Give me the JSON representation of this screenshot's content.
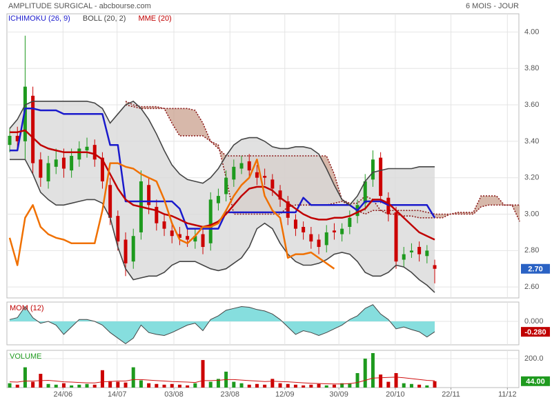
{
  "chart_data": [
    {
      "type": "candlestick",
      "title": "AMPLITUDE SURGICAL - abcbourse.com",
      "subtitle": "6 MOIS - JOUR",
      "xlim": [
        -0.36,
        65.89
      ],
      "xticks": [
        {
          "value": 6.9,
          "label": "24/06"
        },
        {
          "value": 13.9,
          "label": "14/07"
        },
        {
          "value": 21.25,
          "label": "03/08"
        },
        {
          "value": 28.5,
          "label": "23/08"
        },
        {
          "value": 35.6,
          "label": "12/09"
        },
        {
          "value": 42.6,
          "label": "30/09"
        },
        {
          "value": 49.9,
          "label": "20/10"
        },
        {
          "value": 57.1,
          "label": "22/11"
        },
        {
          "value": 64.4,
          "label": "11/12"
        }
      ],
      "ylim": [
        2.54,
        4.1
      ],
      "yticks": [
        {
          "value": 2.6,
          "label": "2.60"
        },
        {
          "value": 2.8,
          "label": "2.80"
        },
        {
          "value": 3.0,
          "label": "3.00"
        },
        {
          "value": 3.2,
          "label": "3.20"
        },
        {
          "value": 3.4,
          "label": "3.40"
        },
        {
          "value": 3.6,
          "label": "3.60"
        },
        {
          "value": 3.8,
          "label": "3.80"
        },
        {
          "value": 4.0,
          "label": "4.00"
        }
      ],
      "grid": true,
      "up_color": "#1e9a1e",
      "down_color": "#cc0000",
      "open": [
        3.38,
        3.43,
        3.4,
        3.65,
        3.3,
        3.18,
        3.26,
        3.31,
        3.24,
        3.3,
        3.35,
        3.38,
        3.31,
        3.16,
        2.99,
        2.86,
        2.74,
        2.9,
        3.16,
        3.04,
        2.96,
        2.91,
        2.89,
        2.88,
        2.85,
        2.89,
        2.84,
        3.06,
        3.11,
        3.19,
        3.25,
        3.29,
        3.23,
        3.21,
        3.19,
        3.13,
        3.07,
        2.97,
        2.93,
        2.89,
        2.86,
        2.83,
        2.91,
        2.89,
        2.93,
        2.99,
        3.06,
        3.19,
        3.31,
        3.09,
        3.01,
        2.75,
        2.79,
        2.82,
        2.77,
        2.72
      ],
      "high": [
        3.47,
        3.48,
        3.98,
        3.7,
        3.34,
        3.32,
        3.36,
        3.36,
        3.36,
        3.4,
        3.42,
        3.41,
        3.34,
        3.2,
        3.02,
        2.9,
        2.92,
        3.24,
        3.2,
        3.08,
        3.0,
        2.95,
        2.93,
        2.92,
        2.92,
        2.93,
        3.12,
        3.14,
        3.24,
        3.3,
        3.32,
        3.33,
        3.27,
        3.25,
        3.22,
        3.16,
        3.1,
        3.0,
        2.96,
        2.93,
        2.89,
        2.94,
        2.95,
        2.95,
        3.02,
        3.08,
        3.22,
        3.35,
        3.34,
        3.12,
        3.04,
        2.82,
        2.84,
        2.85,
        2.83,
        2.75
      ],
      "low": [
        3.34,
        3.36,
        3.3,
        3.22,
        3.15,
        3.14,
        3.22,
        3.2,
        3.2,
        3.26,
        3.31,
        3.26,
        3.14,
        2.94,
        2.8,
        2.66,
        2.7,
        2.86,
        3.0,
        2.91,
        2.88,
        2.84,
        2.83,
        2.82,
        2.81,
        2.78,
        2.8,
        3.02,
        3.07,
        3.15,
        3.22,
        3.2,
        3.16,
        3.16,
        3.1,
        3.04,
        2.94,
        2.88,
        2.86,
        2.81,
        2.78,
        2.79,
        2.86,
        2.85,
        2.89,
        2.95,
        3.02,
        3.15,
        3.06,
        2.96,
        2.7,
        2.71,
        2.76,
        2.74,
        2.73,
        2.62
      ],
      "close": [
        3.43,
        3.4,
        3.7,
        3.28,
        3.2,
        3.28,
        3.3,
        3.25,
        3.32,
        3.36,
        3.37,
        3.3,
        3.18,
        2.98,
        2.85,
        2.73,
        2.88,
        3.18,
        3.05,
        2.95,
        2.92,
        2.88,
        2.87,
        2.86,
        2.88,
        2.82,
        3.08,
        3.1,
        3.2,
        3.26,
        3.28,
        3.24,
        3.2,
        3.2,
        3.14,
        3.08,
        2.98,
        2.92,
        2.9,
        2.85,
        2.82,
        2.9,
        2.9,
        2.92,
        2.98,
        3.05,
        3.18,
        3.3,
        3.1,
        3.0,
        2.74,
        2.78,
        2.8,
        2.78,
        2.8,
        2.7
      ],
      "current": {
        "value": 2.7,
        "label": "2.70",
        "color": "#2a62c4"
      },
      "cloud": {
        "color": "#8b1a1a",
        "fill": "#c9a08e",
        "span_a": [
          null,
          null,
          null,
          null,
          null,
          null,
          null,
          null,
          null,
          null,
          null,
          null,
          null,
          null,
          null,
          3.62,
          3.6,
          3.59,
          3.59,
          3.59,
          3.58,
          3.5,
          3.43,
          3.43,
          3.43,
          3.43,
          3.4,
          3.36,
          3.32,
          3.32,
          3.32,
          3.32,
          3.32,
          3.32,
          3.32,
          3.32,
          3.32,
          3.32,
          3.32,
          3.32,
          3.32,
          3.32,
          3.22,
          3.08,
          3.06,
          3.06,
          3.1,
          3.08,
          3.02,
          3.0,
          3.0,
          2.99,
          2.99,
          2.98,
          2.98,
          2.98,
          2.98,
          3.0,
          3.01,
          3.01,
          3.01,
          3.1,
          3.1,
          3.1,
          3.05,
          3.05,
          3.05
        ],
        "span_b": [
          null,
          null,
          null,
          null,
          null,
          null,
          null,
          null,
          null,
          null,
          null,
          null,
          null,
          null,
          null,
          3.6,
          3.59,
          3.58,
          3.58,
          3.58,
          3.58,
          3.58,
          3.58,
          3.58,
          3.57,
          3.5,
          3.4,
          3.38,
          3.2,
          3.0,
          3.0,
          3.0,
          3.0,
          3.0,
          3.0,
          3.0,
          3.04,
          3.05,
          3.05,
          3.05,
          3.05,
          3.05,
          3.06,
          3.07,
          3.05,
          3.02,
          3.0,
          3.02,
          3.02,
          3.02,
          3.02,
          3.02,
          3.02,
          3.02,
          3.01,
          3.0,
          3.0,
          3.0,
          3.0,
          3.0,
          3.0,
          3.04,
          3.05,
          3.05,
          3.05,
          3.05,
          2.96
        ]
      },
      "series": [
        {
          "name": "ICHIMOKU (26, 9)",
          "color": "#1a1acc",
          "width": 2.5,
          "values": [
            3.35,
            3.35,
            3.58,
            3.58,
            3.57,
            3.57,
            3.57,
            3.55,
            3.55,
            3.55,
            3.55,
            3.55,
            3.55,
            3.38,
            3.38,
            3.07,
            3.07,
            3.07,
            3.07,
            3.07,
            3.07,
            3.07,
            3.03,
            2.92,
            2.92,
            2.92,
            2.92,
            2.92,
            3.01,
            3.01,
            3.01,
            3.01,
            3.01,
            3.01,
            3.01,
            3.01,
            3.01,
            3.01,
            3.09,
            3.05,
            3.05,
            3.05,
            3.05,
            3.05,
            3.05,
            3.02,
            3.07,
            3.07,
            3.07,
            3.05,
            3.05,
            3.05,
            3.05,
            3.05,
            3.05,
            2.98
          ]
        },
        {
          "name": "BOLL (20, 2)",
          "color": "#444444",
          "fill": "#d9d9d9",
          "upper": [
            3.47,
            3.52,
            3.6,
            3.62,
            3.62,
            3.62,
            3.62,
            3.62,
            3.62,
            3.62,
            3.62,
            3.61,
            3.58,
            3.5,
            3.55,
            3.6,
            3.62,
            3.58,
            3.52,
            3.44,
            3.35,
            3.27,
            3.22,
            3.19,
            3.18,
            3.17,
            3.2,
            3.25,
            3.32,
            3.38,
            3.41,
            3.42,
            3.42,
            3.4,
            3.37,
            3.36,
            3.36,
            3.37,
            3.37,
            3.36,
            3.33,
            3.25,
            3.16,
            3.08,
            3.05,
            3.1,
            3.18,
            3.23,
            3.24,
            3.25,
            3.25,
            3.25,
            3.25,
            3.26,
            3.26,
            3.26
          ],
          "lower": [
            3.3,
            3.3,
            3.3,
            3.22,
            3.12,
            3.08,
            3.05,
            3.05,
            3.06,
            3.07,
            3.08,
            3.08,
            3.06,
            2.98,
            2.82,
            2.7,
            2.64,
            2.65,
            2.66,
            2.66,
            2.68,
            2.72,
            2.74,
            2.74,
            2.74,
            2.72,
            2.7,
            2.69,
            2.7,
            2.73,
            2.76,
            2.82,
            2.92,
            2.95,
            2.92,
            2.84,
            2.78,
            2.74,
            2.72,
            2.72,
            2.73,
            2.75,
            2.78,
            2.79,
            2.78,
            2.74,
            2.68,
            2.66,
            2.66,
            2.68,
            2.72,
            2.71,
            2.68,
            2.64,
            2.61,
            2.57
          ]
        },
        {
          "name": "MME (20)",
          "color": "#c00000",
          "width": 2.5,
          "values": [
            3.45,
            3.45,
            3.46,
            3.42,
            3.38,
            3.36,
            3.35,
            3.34,
            3.34,
            3.34,
            3.34,
            3.33,
            3.3,
            3.22,
            3.14,
            3.08,
            3.05,
            3.04,
            3.03,
            3.02,
            3.0,
            2.99,
            2.97,
            2.95,
            2.94,
            2.93,
            2.94,
            2.96,
            3.0,
            3.05,
            3.1,
            3.14,
            3.15,
            3.15,
            3.13,
            3.09,
            3.06,
            3.03,
            3.0,
            2.98,
            2.97,
            2.97,
            2.98,
            2.98,
            2.99,
            3.01,
            3.03,
            3.08,
            3.08,
            3.06,
            3.02,
            2.98,
            2.94,
            2.9,
            2.88,
            2.86
          ]
        },
        {
          "color": "#f07000",
          "width": 2.5,
          "values": [
            2.87,
            2.72,
            2.98,
            3.05,
            2.93,
            2.89,
            2.87,
            2.86,
            2.84,
            2.84,
            2.84,
            2.84,
            3.02,
            3.28,
            3.28,
            3.26,
            3.25,
            3.22,
            3.2,
            3.18,
            3.08,
            2.95,
            2.86,
            2.84,
            2.88,
            2.93,
            2.93,
            2.95,
            3.02,
            3.1,
            3.16,
            3.2,
            3.3,
            3.1,
            3.02,
            2.98,
            2.76,
            2.78,
            2.78,
            2.79,
            2.76,
            2.73,
            2.7,
            null,
            null,
            null,
            null,
            null,
            null,
            null,
            null,
            null,
            null,
            null,
            null,
            null
          ]
        }
      ]
    },
    {
      "type": "momentum",
      "title": "MOM (12)",
      "title_color": "#c00000",
      "color": "#444444",
      "fill": "#86dede",
      "ylim": [
        -0.63,
        0.52
      ],
      "yticks": [
        {
          "value": 0,
          "label": "0.000"
        }
      ],
      "values": [
        0.05,
        0.1,
        0.4,
        0.1,
        -0.05,
        0.0,
        -0.1,
        -0.35,
        -0.15,
        0.05,
        0.05,
        0.0,
        -0.1,
        -0.3,
        -0.45,
        -0.6,
        -0.45,
        -0.1,
        -0.3,
        -0.35,
        -0.38,
        -0.3,
        -0.2,
        -0.1,
        -0.05,
        -0.25,
        0.05,
        0.15,
        0.3,
        0.35,
        0.4,
        0.38,
        0.32,
        0.28,
        0.2,
        0.05,
        -0.15,
        -0.35,
        -0.25,
        -0.3,
        -0.38,
        -0.3,
        -0.2,
        -0.1,
        0.05,
        0.15,
        0.35,
        0.45,
        0.2,
        0.05,
        -0.2,
        -0.15,
        -0.22,
        -0.28,
        -0.42,
        -0.28
      ],
      "current": {
        "value": -0.28,
        "label": "-0.280",
        "color": "#c00000"
      }
    },
    {
      "type": "volume",
      "title": "VOLUME",
      "title_color": "#1e9a1e",
      "ylim": [
        0,
        257
      ],
      "yticks": [
        {
          "value": 200,
          "label": "200.0"
        }
      ],
      "values": [
        30,
        20,
        140,
        40,
        95,
        25,
        20,
        30,
        15,
        20,
        25,
        20,
        120,
        45,
        40,
        35,
        140,
        50,
        30,
        25,
        20,
        25,
        20,
        15,
        30,
        190,
        40,
        60,
        110,
        40,
        30,
        20,
        25,
        20,
        60,
        30,
        25,
        20,
        15,
        20,
        25,
        15,
        20,
        30,
        30,
        100,
        200,
        238,
        90,
        40,
        100,
        30,
        25,
        20,
        15,
        44
      ],
      "average": {
        "color": "#d01010",
        "values": [
          40,
          38,
          45,
          45,
          48,
          50,
          45,
          40,
          38,
          35,
          33,
          32,
          40,
          42,
          45,
          45,
          55,
          55,
          52,
          48,
          45,
          42,
          40,
          38,
          35,
          48,
          48,
          50,
          55,
          55,
          52,
          48,
          45,
          42,
          44,
          42,
          40,
          36,
          33,
          30,
          28,
          26,
          25,
          25,
          27,
          35,
          50,
          65,
          68,
          70,
          72,
          68,
          62,
          56,
          50,
          47
        ]
      },
      "current": {
        "value": 44,
        "label": "44.00",
        "color": "#1e9a1e"
      }
    }
  ]
}
